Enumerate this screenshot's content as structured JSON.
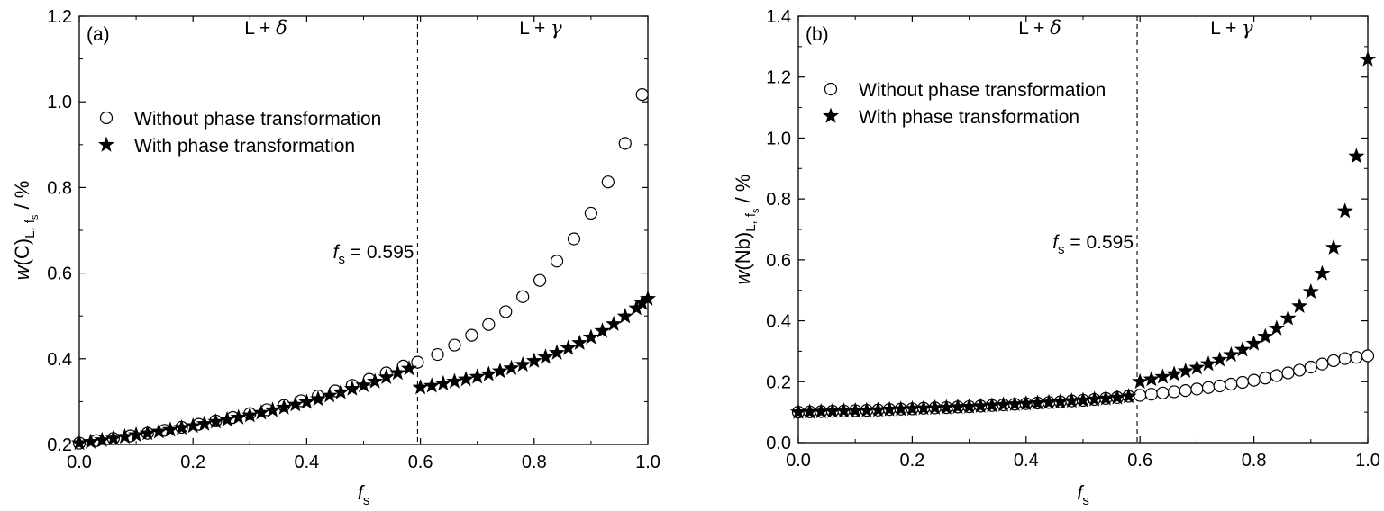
{
  "chart_data": [
    {
      "type": "scatter",
      "panel_label": "(a)",
      "xlabel": {
        "main": "f",
        "sub": "s"
      },
      "ylabel": {
        "w": "w",
        "rest": "(C)",
        "sub": "L, f",
        "subsub": "s",
        "unit": " / %"
      },
      "xlim": [
        0.0,
        1.0
      ],
      "ylim": [
        0.2,
        1.2
      ],
      "xticks": [
        "0.0",
        "0.2",
        "0.4",
        "0.6",
        "0.8",
        "1.0"
      ],
      "yticks": [
        "0.2",
        "0.4",
        "0.6",
        "0.8",
        "1.0",
        "1.2"
      ],
      "region_labels": {
        "left": {
          "text": "L + ",
          "sym": "δ"
        },
        "right": {
          "text": "L + ",
          "sym": "γ"
        }
      },
      "divider": {
        "x": 0.595,
        "label_pre": "f",
        "label_sub": "s",
        "label_post": " = 0.595"
      },
      "legend_position": "upper-left",
      "series": [
        {
          "name": "Without phase transformation",
          "marker": "open-circle",
          "points": [
            [
              0.0,
              0.203
            ],
            [
              0.03,
              0.209
            ],
            [
              0.06,
              0.214
            ],
            [
              0.09,
              0.22
            ],
            [
              0.12,
              0.226
            ],
            [
              0.15,
              0.233
            ],
            [
              0.18,
              0.24
            ],
            [
              0.21,
              0.247
            ],
            [
              0.24,
              0.255
            ],
            [
              0.27,
              0.263
            ],
            [
              0.3,
              0.272
            ],
            [
              0.33,
              0.281
            ],
            [
              0.36,
              0.291
            ],
            [
              0.39,
              0.302
            ],
            [
              0.42,
              0.313
            ],
            [
              0.45,
              0.325
            ],
            [
              0.48,
              0.338
            ],
            [
              0.51,
              0.352
            ],
            [
              0.54,
              0.367
            ],
            [
              0.57,
              0.383
            ],
            [
              0.595,
              0.392
            ],
            [
              0.63,
              0.41
            ],
            [
              0.66,
              0.432
            ],
            [
              0.69,
              0.455
            ],
            [
              0.72,
              0.48
            ],
            [
              0.75,
              0.51
            ],
            [
              0.78,
              0.545
            ],
            [
              0.81,
              0.583
            ],
            [
              0.84,
              0.628
            ],
            [
              0.87,
              0.68
            ],
            [
              0.9,
              0.74
            ],
            [
              0.93,
              0.813
            ],
            [
              0.96,
              0.903
            ],
            [
              0.99,
              1.017
            ]
          ]
        },
        {
          "name": "With phase transformation",
          "marker": "filled-star",
          "points": [
            [
              0.0,
              0.203
            ],
            [
              0.02,
              0.206
            ],
            [
              0.04,
              0.21
            ],
            [
              0.06,
              0.214
            ],
            [
              0.08,
              0.218
            ],
            [
              0.1,
              0.222
            ],
            [
              0.12,
              0.226
            ],
            [
              0.14,
              0.23
            ],
            [
              0.16,
              0.234
            ],
            [
              0.18,
              0.239
            ],
            [
              0.2,
              0.243
            ],
            [
              0.22,
              0.248
            ],
            [
              0.24,
              0.253
            ],
            [
              0.26,
              0.258
            ],
            [
              0.28,
              0.263
            ],
            [
              0.3,
              0.268
            ],
            [
              0.32,
              0.274
            ],
            [
              0.34,
              0.28
            ],
            [
              0.36,
              0.286
            ],
            [
              0.38,
              0.293
            ],
            [
              0.4,
              0.299
            ],
            [
              0.42,
              0.306
            ],
            [
              0.44,
              0.314
            ],
            [
              0.46,
              0.322
            ],
            [
              0.48,
              0.33
            ],
            [
              0.5,
              0.338
            ],
            [
              0.52,
              0.347
            ],
            [
              0.54,
              0.357
            ],
            [
              0.56,
              0.367
            ],
            [
              0.58,
              0.377
            ],
            [
              0.6,
              0.333
            ],
            [
              0.62,
              0.337
            ],
            [
              0.64,
              0.342
            ],
            [
              0.66,
              0.347
            ],
            [
              0.68,
              0.352
            ],
            [
              0.7,
              0.358
            ],
            [
              0.72,
              0.364
            ],
            [
              0.74,
              0.371
            ],
            [
              0.76,
              0.378
            ],
            [
              0.78,
              0.386
            ],
            [
              0.8,
              0.395
            ],
            [
              0.82,
              0.404
            ],
            [
              0.84,
              0.414
            ],
            [
              0.86,
              0.425
            ],
            [
              0.88,
              0.437
            ],
            [
              0.9,
              0.45
            ],
            [
              0.92,
              0.465
            ],
            [
              0.94,
              0.481
            ],
            [
              0.96,
              0.499
            ],
            [
              0.98,
              0.518
            ],
            [
              0.99,
              0.53
            ],
            [
              1.0,
              0.54
            ]
          ]
        }
      ]
    },
    {
      "type": "scatter",
      "panel_label": "(b)",
      "xlabel": {
        "main": "f",
        "sub": "s"
      },
      "ylabel": {
        "w": "w",
        "rest": "(Nb)",
        "sub": "L, f",
        "subsub": "s",
        "unit": " / %"
      },
      "xlim": [
        0.0,
        1.0
      ],
      "ylim": [
        0.0,
        1.4
      ],
      "xticks": [
        "0.0",
        "0.2",
        "0.4",
        "0.6",
        "0.8",
        "1.0"
      ],
      "yticks": [
        "0.0",
        "0.2",
        "0.4",
        "0.6",
        "0.8",
        "1.0",
        "1.2",
        "1.4"
      ],
      "region_labels": {
        "left": {
          "text": "L + ",
          "sym": "δ"
        },
        "right": {
          "text": "L + ",
          "sym": "γ"
        }
      },
      "divider": {
        "x": 0.595,
        "label_pre": "f",
        "label_sub": "s",
        "label_post": " = 0.595"
      },
      "legend_position": "upper-left",
      "series": [
        {
          "name": "Without phase transformation",
          "marker": "open-circle",
          "points": [
            [
              0.0,
              0.1
            ],
            [
              0.02,
              0.101
            ],
            [
              0.04,
              0.102
            ],
            [
              0.06,
              0.103
            ],
            [
              0.08,
              0.104
            ],
            [
              0.1,
              0.105
            ],
            [
              0.12,
              0.106
            ],
            [
              0.14,
              0.107
            ],
            [
              0.16,
              0.109
            ],
            [
              0.18,
              0.11
            ],
            [
              0.2,
              0.111
            ],
            [
              0.22,
              0.113
            ],
            [
              0.24,
              0.114
            ],
            [
              0.26,
              0.115
            ],
            [
              0.28,
              0.117
            ],
            [
              0.3,
              0.118
            ],
            [
              0.32,
              0.12
            ],
            [
              0.34,
              0.122
            ],
            [
              0.36,
              0.124
            ],
            [
              0.38,
              0.126
            ],
            [
              0.4,
              0.128
            ],
            [
              0.42,
              0.13
            ],
            [
              0.44,
              0.132
            ],
            [
              0.46,
              0.134
            ],
            [
              0.48,
              0.137
            ],
            [
              0.5,
              0.139
            ],
            [
              0.52,
              0.142
            ],
            [
              0.54,
              0.145
            ],
            [
              0.56,
              0.148
            ],
            [
              0.58,
              0.152
            ],
            [
              0.6,
              0.155
            ],
            [
              0.62,
              0.159
            ],
            [
              0.64,
              0.163
            ],
            [
              0.66,
              0.167
            ],
            [
              0.68,
              0.171
            ],
            [
              0.7,
              0.176
            ],
            [
              0.72,
              0.181
            ],
            [
              0.74,
              0.186
            ],
            [
              0.76,
              0.192
            ],
            [
              0.78,
              0.198
            ],
            [
              0.8,
              0.205
            ],
            [
              0.82,
              0.212
            ],
            [
              0.84,
              0.22
            ],
            [
              0.86,
              0.229
            ],
            [
              0.88,
              0.238
            ],
            [
              0.9,
              0.248
            ],
            [
              0.92,
              0.258
            ],
            [
              0.94,
              0.269
            ],
            [
              0.96,
              0.276
            ],
            [
              0.98,
              0.28
            ],
            [
              1.0,
              0.285
            ]
          ]
        },
        {
          "name": "With phase transformation",
          "marker": "filled-star",
          "points": [
            [
              0.0,
              0.1
            ],
            [
              0.02,
              0.101
            ],
            [
              0.04,
              0.102
            ],
            [
              0.06,
              0.103
            ],
            [
              0.08,
              0.104
            ],
            [
              0.1,
              0.105
            ],
            [
              0.12,
              0.106
            ],
            [
              0.14,
              0.107
            ],
            [
              0.16,
              0.109
            ],
            [
              0.18,
              0.11
            ],
            [
              0.2,
              0.111
            ],
            [
              0.22,
              0.113
            ],
            [
              0.24,
              0.114
            ],
            [
              0.26,
              0.115
            ],
            [
              0.28,
              0.117
            ],
            [
              0.3,
              0.118
            ],
            [
              0.32,
              0.12
            ],
            [
              0.34,
              0.122
            ],
            [
              0.36,
              0.124
            ],
            [
              0.38,
              0.126
            ],
            [
              0.4,
              0.128
            ],
            [
              0.42,
              0.13
            ],
            [
              0.44,
              0.132
            ],
            [
              0.46,
              0.134
            ],
            [
              0.48,
              0.137
            ],
            [
              0.5,
              0.139
            ],
            [
              0.52,
              0.142
            ],
            [
              0.54,
              0.145
            ],
            [
              0.56,
              0.148
            ],
            [
              0.58,
              0.152
            ],
            [
              0.6,
              0.2
            ],
            [
              0.62,
              0.208
            ],
            [
              0.64,
              0.216
            ],
            [
              0.66,
              0.225
            ],
            [
              0.68,
              0.235
            ],
            [
              0.7,
              0.246
            ],
            [
              0.72,
              0.258
            ],
            [
              0.74,
              0.272
            ],
            [
              0.76,
              0.288
            ],
            [
              0.78,
              0.305
            ],
            [
              0.8,
              0.325
            ],
            [
              0.82,
              0.348
            ],
            [
              0.84,
              0.375
            ],
            [
              0.86,
              0.408
            ],
            [
              0.88,
              0.448
            ],
            [
              0.9,
              0.495
            ],
            [
              0.92,
              0.555
            ],
            [
              0.94,
              0.64
            ],
            [
              0.96,
              0.76
            ],
            [
              0.98,
              0.94
            ],
            [
              1.0,
              1.258
            ]
          ]
        }
      ]
    }
  ]
}
